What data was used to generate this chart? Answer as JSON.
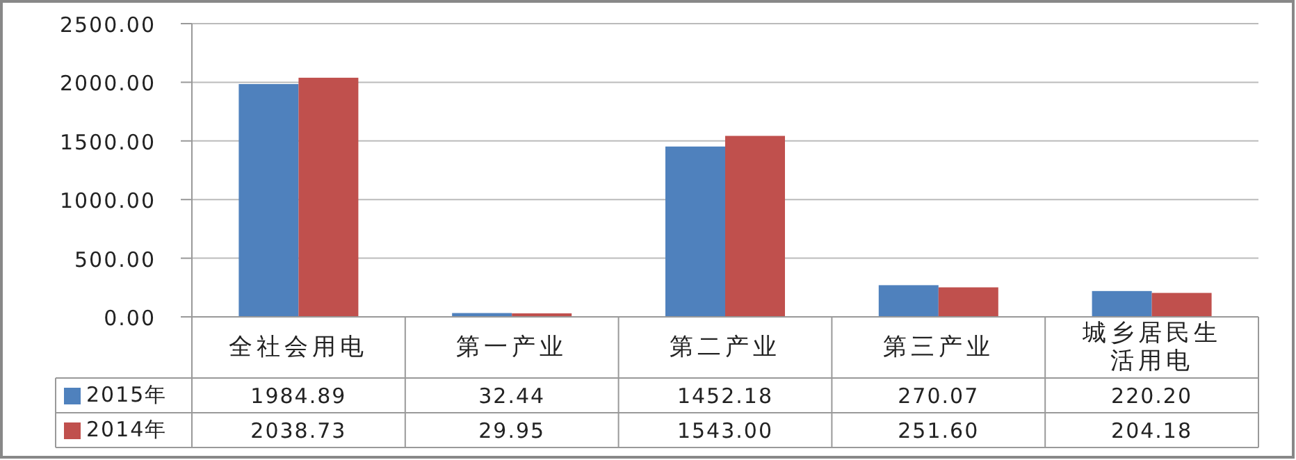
{
  "chart_data": {
    "type": "bar",
    "categories": [
      "全社会用电",
      "第一产业",
      "第二产业",
      "第三产业",
      "城乡居民生活用电"
    ],
    "series": [
      {
        "name": "2015年",
        "color": "#4f81bd",
        "values": [
          1984.89,
          32.44,
          1452.18,
          270.07,
          220.2
        ],
        "value_labels": [
          "1984.89",
          "32.44",
          "1452.18",
          "270.07",
          "220.20"
        ]
      },
      {
        "name": "2014年",
        "color": "#c0504d",
        "values": [
          2038.73,
          29.95,
          1543.0,
          251.6,
          204.18
        ],
        "value_labels": [
          "2038.73",
          "29.95",
          "1543.00",
          "251.60",
          "204.18"
        ]
      }
    ],
    "ylim": [
      0,
      2500
    ],
    "yticks": [
      {
        "value": 0,
        "label": "0.00"
      },
      {
        "value": 500,
        "label": "500.00"
      },
      {
        "value": 1000,
        "label": "1000.00"
      },
      {
        "value": 1500,
        "label": "1500.00"
      },
      {
        "value": 2000,
        "label": "2000.00"
      },
      {
        "value": 2500,
        "label": "2500.00"
      }
    ],
    "grid": "y",
    "legend": "bottom left"
  }
}
